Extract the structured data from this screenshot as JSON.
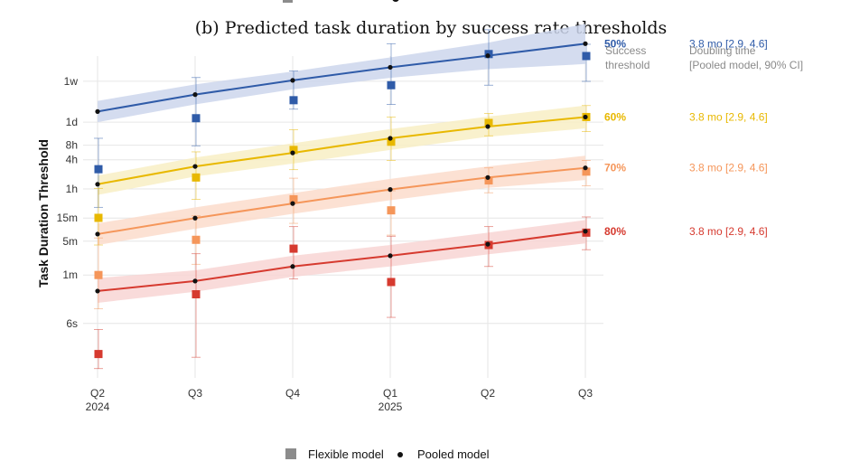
{
  "chart_data": {
    "type": "line",
    "title": "(b) Predicted task duration by success rate thresholds",
    "ylabel": "Task Duration Threshold",
    "xlabel": "",
    "x_categories": [
      "Q2\n2024",
      "Q3",
      "Q4",
      "Q1\n2025",
      "Q2",
      "Q3"
    ],
    "y_scale": "log",
    "y_unit": "seconds",
    "ylim": [
      0.45,
      2000000
    ],
    "y_ticks": [
      {
        "label": "1w",
        "value": 604800
      },
      {
        "label": "1d",
        "value": 86400
      },
      {
        "label": "8h",
        "value": 28800
      },
      {
        "label": "4h",
        "value": 14400
      },
      {
        "label": "1h",
        "value": 3600
      },
      {
        "label": "15m",
        "value": 900
      },
      {
        "label": "5m",
        "value": 300
      },
      {
        "label": "1m",
        "value": 60
      },
      {
        "label": "6s",
        "value": 6
      }
    ],
    "legend_header_threshold": "Success\nthreshold",
    "legend_header_doubling": "Doubling time\n[Pooled model, 90% CI]",
    "grid": true,
    "series": [
      {
        "name": "50%",
        "doubling": "3.8 mo [2.9, 4.6]",
        "color": "#2f5ba8",
        "band_color": "#cdd6ec",
        "pooled": [
          143000,
          320000,
          630000,
          1170000,
          2030000,
          3600000
        ],
        "band_low": [
          86000,
          200000,
          410000,
          710000,
          1070000,
          1370000
        ],
        "band_high": [
          237000,
          520000,
          960000,
          1880000,
          3780000,
          9200000
        ],
        "flexible": [
          {
            "x": 0,
            "y": 9200,
            "lo": 1500,
            "hi": 40000
          },
          {
            "x": 1,
            "y": 104000,
            "lo": 28000,
            "hi": 720000
          },
          {
            "x": 2,
            "y": 245000,
            "lo": 160000,
            "hi": 980000
          },
          {
            "x": 3,
            "y": 500000,
            "lo": 200000,
            "hi": 3600000
          },
          {
            "x": 4,
            "y": 2200000,
            "lo": 500000,
            "hi": 7000000
          },
          {
            "x": 5,
            "y": 2000000,
            "lo": 600000,
            "hi": 3500000
          }
        ]
      },
      {
        "name": "60%",
        "doubling": "3.8 mo [2.9, 4.6]",
        "color": "#e8b800",
        "band_color": "#f8efc4",
        "pooled": [
          4500,
          10500,
          20000,
          40000,
          70000,
          110000
        ],
        "band_low": [
          2700,
          6500,
          12000,
          23000,
          43000,
          64000
        ],
        "band_high": [
          6800,
          16000,
          31500,
          62000,
          112000,
          190000
        ],
        "flexible": [
          {
            "x": 0,
            "y": 910,
            "lo": 250,
            "hi": 3700
          },
          {
            "x": 1,
            "y": 6200,
            "lo": 2200,
            "hi": 21000
          },
          {
            "x": 2,
            "y": 23000,
            "lo": 9000,
            "hi": 60000
          },
          {
            "x": 3,
            "y": 34000,
            "lo": 14000,
            "hi": 110000
          },
          {
            "x": 4,
            "y": 83000,
            "lo": 45000,
            "hi": 130000
          },
          {
            "x": 5,
            "y": 110000,
            "lo": 55000,
            "hi": 190000
          }
        ]
      },
      {
        "name": "70%",
        "doubling": "3.8 mo [2.9, 4.6]",
        "color": "#f5965a",
        "band_color": "#fbdccb",
        "pooled": [
          420,
          900,
          1800,
          3500,
          6200,
          9800
        ],
        "band_low": [
          250,
          540,
          1100,
          2100,
          3800,
          5500
        ],
        "band_high": [
          700,
          1500,
          2950,
          5800,
          10500,
          17500
        ],
        "flexible": [
          {
            "x": 0,
            "y": 60,
            "lo": 12,
            "hi": 350
          },
          {
            "x": 1,
            "y": 320,
            "lo": 100,
            "hi": 1000
          },
          {
            "x": 2,
            "y": 2200,
            "lo": 700,
            "hi": 6000
          },
          {
            "x": 3,
            "y": 1300,
            "lo": 400,
            "hi": 3300
          },
          {
            "x": 4,
            "y": 5400,
            "lo": 3000,
            "hi": 9800
          },
          {
            "x": 5,
            "y": 8200,
            "lo": 4200,
            "hi": 14000
          }
        ]
      },
      {
        "name": "80%",
        "doubling": "3.8 mo [2.9, 4.6]",
        "color": "#d63a2f",
        "band_color": "#f8d5d3",
        "pooled": [
          28,
          45,
          90,
          150,
          260,
          480
        ],
        "band_low": [
          16,
          27,
          55,
          90,
          160,
          270
        ],
        "band_high": [
          52,
          75,
          150,
          250,
          450,
          820
        ],
        "flexible": [
          {
            "x": 0,
            "y": 1.4,
            "lo": 0.7,
            "hi": 4.5
          },
          {
            "x": 1,
            "y": 24,
            "lo": 1.2,
            "hi": 165
          },
          {
            "x": 2,
            "y": 210,
            "lo": 50,
            "hi": 600
          },
          {
            "x": 3,
            "y": 43,
            "lo": 8,
            "hi": 380
          },
          {
            "x": 4,
            "y": 250,
            "lo": 90,
            "hi": 600
          },
          {
            "x": 5,
            "y": 450,
            "lo": 200,
            "hi": 950
          }
        ]
      }
    ],
    "legend": {
      "position": "bottom",
      "items": [
        {
          "label": "Flexible model",
          "marker": "square",
          "color": "#8c8c8c"
        },
        {
          "label": "Pooled model",
          "marker": "dot",
          "color": "#111111"
        }
      ]
    }
  }
}
